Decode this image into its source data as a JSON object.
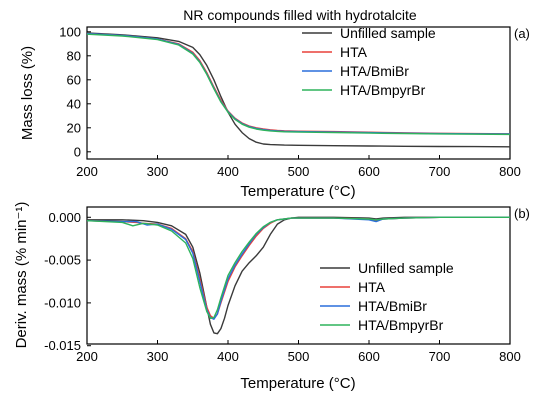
{
  "chart_data": [
    {
      "panel_label": "(a)",
      "type": "line",
      "title": "NR compounds filled with hydrotalcite",
      "xlabel": "Temperature (°C)",
      "ylabel": "Mass loss (%)",
      "xlim": [
        200,
        800
      ],
      "ylim": [
        -6,
        104
      ],
      "xticks": [
        200,
        300,
        400,
        500,
        600,
        700,
        800
      ],
      "yticks": [
        0,
        20,
        40,
        60,
        80,
        100
      ],
      "legend_position": "top-right",
      "series": [
        {
          "name": "Unfilled sample",
          "color": "#3a3a3a",
          "x": [
            200,
            250,
            300,
            330,
            350,
            360,
            370,
            380,
            390,
            400,
            410,
            420,
            430,
            440,
            450,
            460,
            470,
            480,
            500,
            550,
            600,
            650,
            700,
            750,
            800
          ],
          "y": [
            99,
            97.5,
            95,
            92,
            87,
            81,
            72,
            60,
            46,
            33,
            23,
            16,
            11,
            8,
            6.5,
            6,
            5.8,
            5.6,
            5.4,
            5.1,
            4.8,
            4.6,
            4.4,
            4.3,
            4.2
          ]
        },
        {
          "name": "HTA",
          "color": "#e8413a",
          "x": [
            200,
            250,
            300,
            330,
            350,
            360,
            370,
            380,
            390,
            400,
            410,
            420,
            430,
            440,
            450,
            460,
            470,
            480,
            500,
            550,
            600,
            650,
            700,
            750,
            800
          ],
          "y": [
            98.5,
            97,
            94,
            90,
            83,
            76,
            66,
            54,
            43,
            34,
            28,
            24,
            21.5,
            20,
            19,
            18.3,
            17.8,
            17.5,
            17.2,
            16.8,
            16.3,
            15.8,
            15.4,
            15.2,
            15
          ]
        },
        {
          "name": "HTA/BmiBr",
          "color": "#2a6fdb",
          "x": [
            200,
            250,
            300,
            330,
            350,
            360,
            370,
            380,
            390,
            400,
            410,
            420,
            430,
            440,
            450,
            460,
            470,
            480,
            500,
            550,
            600,
            650,
            700,
            750,
            800
          ],
          "y": [
            98.5,
            97,
            94,
            89.5,
            82,
            75,
            65,
            53,
            42,
            33.5,
            27.5,
            23.5,
            21,
            19.5,
            18.5,
            17.8,
            17.4,
            17.1,
            16.8,
            16.4,
            16,
            15.5,
            15.2,
            15,
            14.8
          ]
        },
        {
          "name": "HTA/BmpyrBr",
          "color": "#2fb35c",
          "x": [
            200,
            250,
            300,
            330,
            350,
            360,
            370,
            380,
            390,
            400,
            410,
            420,
            430,
            440,
            450,
            460,
            470,
            480,
            500,
            550,
            600,
            650,
            700,
            750,
            800
          ],
          "y": [
            98,
            96.5,
            93.5,
            89,
            81.5,
            74.5,
            64.5,
            52.5,
            41.5,
            33,
            27,
            23,
            20.5,
            19,
            18,
            17.4,
            17,
            16.7,
            16.4,
            16,
            15.6,
            15.2,
            14.9,
            14.7,
            14.5
          ]
        }
      ]
    },
    {
      "panel_label": "(b)",
      "type": "line",
      "title": "",
      "xlabel": "Temperature (°C)",
      "ylabel": "Deriv. mass (% min⁻¹)",
      "xlim": [
        200,
        800
      ],
      "ylim": [
        -0.0148,
        0.0012
      ],
      "xticks": [
        200,
        300,
        400,
        500,
        600,
        700,
        800
      ],
      "yticks": [
        "0.000",
        "-0.005",
        "-0.010",
        "-0.015"
      ],
      "ytick_values": [
        0.0,
        -0.005,
        -0.01,
        -0.015
      ],
      "legend_position": "bottom-right",
      "series": [
        {
          "name": "Unfilled sample",
          "color": "#3a3a3a",
          "x": [
            200,
            250,
            280,
            300,
            320,
            340,
            350,
            360,
            370,
            375,
            380,
            385,
            390,
            395,
            400,
            410,
            420,
            430,
            440,
            450,
            460,
            470,
            480,
            490,
            500,
            550,
            600,
            610,
            620,
            650,
            700,
            800
          ],
          "y": [
            -0.0003,
            -0.0003,
            -0.0004,
            -0.0006,
            -0.001,
            -0.002,
            -0.0035,
            -0.0065,
            -0.0105,
            -0.0125,
            -0.0135,
            -0.0136,
            -0.013,
            -0.0118,
            -0.0103,
            -0.008,
            -0.0063,
            -0.0053,
            -0.0045,
            -0.0035,
            -0.002,
            -0.0008,
            -0.0003,
            -0.0001,
            0.0,
            0.0,
            -0.0001,
            -0.0002,
            -0.0001,
            0.0,
            0.0,
            0.0
          ]
        },
        {
          "name": "HTA",
          "color": "#e8413a",
          "x": [
            200,
            250,
            270,
            280,
            300,
            320,
            340,
            350,
            360,
            370,
            375,
            380,
            385,
            390,
            400,
            410,
            420,
            430,
            440,
            450,
            460,
            470,
            480,
            490,
            500,
            550,
            600,
            610,
            620,
            650,
            700,
            800
          ],
          "y": [
            -0.0004,
            -0.0005,
            -0.0006,
            -0.0007,
            -0.0008,
            -0.0013,
            -0.0025,
            -0.004,
            -0.0072,
            -0.0105,
            -0.0115,
            -0.0118,
            -0.0113,
            -0.01,
            -0.0075,
            -0.0058,
            -0.0045,
            -0.0033,
            -0.0022,
            -0.0013,
            -0.0007,
            -0.0003,
            -0.0002,
            -0.0001,
            -0.0001,
            -0.0001,
            -0.0002,
            -0.0004,
            -0.0002,
            -0.0001,
            0.0,
            0.0
          ]
        },
        {
          "name": "HTA/BmiBr",
          "color": "#2a6fdb",
          "x": [
            200,
            250,
            270,
            285,
            300,
            320,
            340,
            350,
            360,
            370,
            375,
            380,
            385,
            390,
            400,
            410,
            420,
            430,
            440,
            450,
            460,
            470,
            480,
            490,
            500,
            550,
            600,
            610,
            620,
            650,
            700,
            800
          ],
          "y": [
            -0.0004,
            -0.0005,
            -0.0005,
            -0.0009,
            -0.0008,
            -0.0014,
            -0.0026,
            -0.0042,
            -0.0075,
            -0.0108,
            -0.0117,
            -0.0119,
            -0.0113,
            -0.0098,
            -0.0072,
            -0.0056,
            -0.0043,
            -0.0031,
            -0.002,
            -0.0012,
            -0.0006,
            -0.0003,
            -0.0002,
            -0.0001,
            -0.0001,
            -0.0001,
            -0.0003,
            -0.0005,
            -0.0002,
            -0.0001,
            0.0,
            0.0
          ]
        },
        {
          "name": "HTA/BmpyrBr",
          "color": "#2fb35c",
          "x": [
            200,
            250,
            265,
            280,
            300,
            320,
            340,
            350,
            360,
            370,
            375,
            380,
            385,
            390,
            400,
            410,
            420,
            430,
            440,
            450,
            460,
            470,
            480,
            490,
            500,
            550,
            600,
            610,
            620,
            650,
            700,
            800
          ],
          "y": [
            -0.0004,
            -0.0006,
            -0.001,
            -0.0007,
            -0.0009,
            -0.0016,
            -0.003,
            -0.0048,
            -0.0082,
            -0.011,
            -0.0118,
            -0.0117,
            -0.0108,
            -0.0094,
            -0.0068,
            -0.0053,
            -0.004,
            -0.0029,
            -0.0019,
            -0.0011,
            -0.0006,
            -0.0003,
            -0.0002,
            -0.0001,
            -0.0001,
            -0.0001,
            -0.0002,
            -0.0003,
            -0.0002,
            -0.0001,
            0.0,
            0.0
          ]
        }
      ]
    }
  ]
}
